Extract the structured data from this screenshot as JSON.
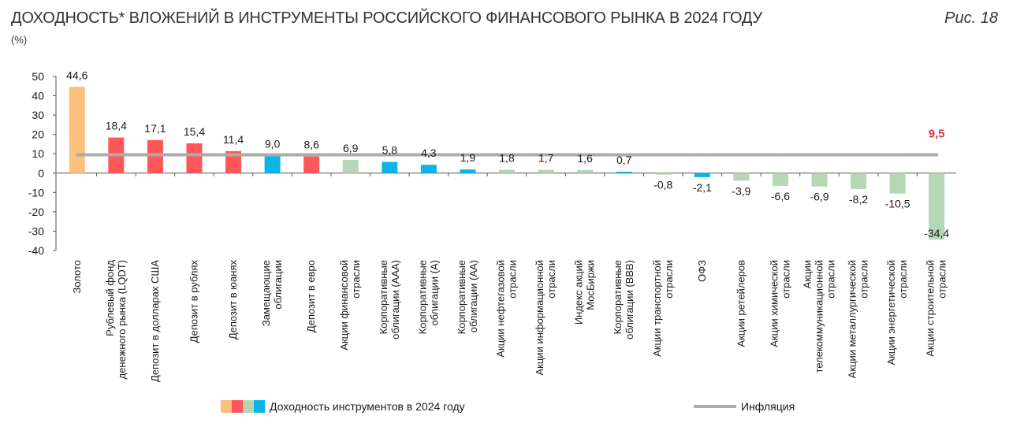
{
  "header": {
    "title": "ДОХОДНОСТЬ* ВЛОЖЕНИЙ В ИНСТРУМЕНТЫ РОССИЙСКОГО ФИНАНСОВОГО РЫНКА В 2024 ГОДУ",
    "figure_label": "Рис. 18",
    "unit": "(%)"
  },
  "colors": {
    "gold": "#fdc07e",
    "red": "#ff5759",
    "green": "#b5d7b6",
    "blue": "#0cb5e8",
    "inflation": "#ababab",
    "inflation_label": "#e8313d"
  },
  "chart_data": {
    "type": "bar",
    "ylim": [
      -40,
      50
    ],
    "yticks": [
      50,
      40,
      30,
      20,
      10,
      0,
      -10,
      -20,
      -30,
      -40
    ],
    "categories": [
      "Золото",
      "Рублевый фонд денежного рынка (LQDT)",
      "Депозит в долларах США",
      "Депозит в рублях",
      "Депозит в юанях",
      "Замещающие облигации",
      "Депозит в евро",
      "Акции финансовой отрасли",
      "Корпоративные облигации (ААА)",
      "Корпоративные облигации (А)",
      "Корпоративные облигации (АА)",
      "Акции нефтегазовой отрасли",
      "Акции информационной отрасли",
      "Индекс акций МосБиржи",
      "Корпоративные облигации (ВВВ)",
      "Акции транспортной отрасли",
      "ОФЗ",
      "Акции ретейлеров",
      "Акции химической отрасли",
      "Акции телекоммуникационной отрасли",
      "Акции металлургической отрасли",
      "Акции энергетической отрасли",
      "Акции строительной отрасли"
    ],
    "category_lines": [
      [
        "Золото"
      ],
      [
        "Рублевый фонд",
        "денежного рынка (LQDT)"
      ],
      [
        "Депозит в долларах США"
      ],
      [
        "Депозит в рублях"
      ],
      [
        "Депозит в юанях"
      ],
      [
        "Замещающие",
        "облигации"
      ],
      [
        "Депозит в евро"
      ],
      [
        "Акции финансовой",
        "отрасли"
      ],
      [
        "Корпоративные",
        "облигации (ААА)"
      ],
      [
        "Корпоративные",
        "облигации (А)"
      ],
      [
        "Корпоративные",
        "облигации (АА)"
      ],
      [
        "Акции нефтегазовой",
        "отрасли"
      ],
      [
        "Акции информационной",
        "отрасли"
      ],
      [
        "Индекс акций",
        "МосБиржи"
      ],
      [
        "Корпоративные",
        "облигации (ВВВ)"
      ],
      [
        "Акции транспортной",
        "отрасли"
      ],
      [
        "ОФЗ"
      ],
      [
        "Акции ретейлеров"
      ],
      [
        "Акции химической",
        "отрасли"
      ],
      [
        "Акции",
        "телекоммуникационной",
        "отрасли"
      ],
      [
        "Акции металлургической",
        "отрасли"
      ],
      [
        "Акции энергетической",
        "отрасли"
      ],
      [
        "Акции строительной",
        "отрасли"
      ]
    ],
    "values": [
      44.6,
      18.4,
      17.1,
      15.4,
      11.4,
      9.0,
      8.6,
      6.9,
      5.8,
      4.3,
      1.9,
      1.8,
      1.7,
      1.6,
      0.7,
      -0.8,
      -2.1,
      -3.9,
      -6.6,
      -6.9,
      -8.2,
      -10.5,
      -34.4
    ],
    "value_labels": [
      "44,6",
      "18,4",
      "17,1",
      "15,4",
      "11,4",
      "9,0",
      "8,6",
      "6,9",
      "5,8",
      "4,3",
      "1,9",
      "1,8",
      "1,7",
      "1,6",
      "0,7",
      "-0,8",
      "-2,1",
      "-3,9",
      "-6,6",
      "-6,9",
      "-8,2",
      "-10,5",
      "-34,4"
    ],
    "bar_colors": [
      "gold",
      "red",
      "red",
      "red",
      "red",
      "blue",
      "red",
      "green",
      "blue",
      "blue",
      "blue",
      "green",
      "green",
      "green",
      "blue",
      "green",
      "blue",
      "green",
      "green",
      "green",
      "green",
      "green",
      "green"
    ],
    "inflation": {
      "value": 9.5,
      "label": "9,5"
    },
    "legend": {
      "series": "Доходность инструментов в 2024 году",
      "inflation": "Инфляция",
      "swatches": [
        "gold",
        "red",
        "green",
        "blue"
      ]
    }
  }
}
